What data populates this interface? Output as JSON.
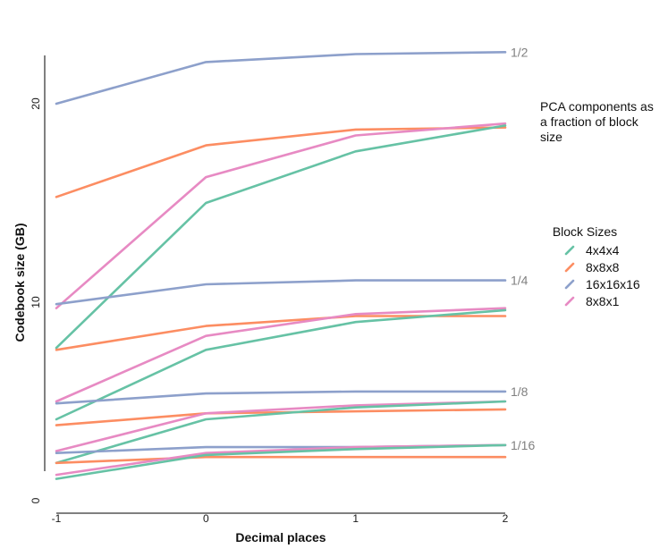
{
  "chart_data": {
    "type": "line",
    "xlabel": "Decimal places",
    "ylabel": "Codebook size (GB)",
    "x": [
      -1,
      0,
      1,
      2
    ],
    "x_tick_labels": [
      "-1",
      "0",
      "1",
      "2"
    ],
    "xlim": [
      -1,
      2
    ],
    "ylim": [
      0,
      23
    ],
    "y_ticks": [
      0,
      10,
      20
    ],
    "y_tick_labels": [
      "0",
      "10",
      "20"
    ],
    "grid": false,
    "legend": {
      "title": "Block Sizes",
      "placement": "right",
      "entries": [
        "4x4x4",
        "8x8x8",
        "16x16x16",
        "8x8x1"
      ]
    },
    "colors": {
      "4x4x4": "#66c2a5",
      "8x8x8": "#fc8d62",
      "16x16x16": "#8da0cb",
      "8x8x1": "#e78ac3"
    },
    "groups": [
      {
        "label": "1/2",
        "series": [
          {
            "name": "16x16x16",
            "values": [
              20.0,
              22.1,
              22.5,
              22.6
            ]
          },
          {
            "name": "8x8x8",
            "values": [
              15.3,
              17.9,
              18.7,
              18.8
            ]
          },
          {
            "name": "8x8x1",
            "values": [
              9.7,
              16.3,
              18.4,
              19.0
            ]
          },
          {
            "name": "4x4x4",
            "values": [
              7.7,
              15.0,
              17.6,
              18.9
            ]
          }
        ]
      },
      {
        "label": "1/4",
        "series": [
          {
            "name": "16x16x16",
            "values": [
              9.9,
              10.9,
              11.1,
              11.1
            ]
          },
          {
            "name": "8x8x8",
            "values": [
              7.6,
              8.8,
              9.3,
              9.3
            ]
          },
          {
            "name": "8x8x1",
            "values": [
              5.0,
              8.3,
              9.4,
              9.7
            ]
          },
          {
            "name": "4x4x4",
            "values": [
              4.1,
              7.6,
              9.0,
              9.6
            ]
          }
        ]
      },
      {
        "label": "1/8",
        "series": [
          {
            "name": "16x16x16",
            "values": [
              4.9,
              5.4,
              5.5,
              5.5
            ]
          },
          {
            "name": "8x8x8",
            "values": [
              3.8,
              4.4,
              4.5,
              4.6
            ]
          },
          {
            "name": "8x8x1",
            "values": [
              2.5,
              4.4,
              4.8,
              5.0
            ]
          },
          {
            "name": "4x4x4",
            "values": [
              1.9,
              4.1,
              4.7,
              5.0
            ]
          }
        ]
      },
      {
        "label": "1/16",
        "series": [
          {
            "name": "16x16x16",
            "values": [
              2.4,
              2.7,
              2.7,
              2.8
            ]
          },
          {
            "name": "8x8x8",
            "values": [
              1.9,
              2.2,
              2.2,
              2.2
            ]
          },
          {
            "name": "8x8x1",
            "values": [
              1.3,
              2.4,
              2.7,
              2.8
            ]
          },
          {
            "name": "4x4x4",
            "values": [
              1.1,
              2.3,
              2.6,
              2.8
            ]
          }
        ]
      }
    ],
    "annotation_lines": [
      "PCA components as",
      "a fraction of block",
      "size"
    ]
  }
}
